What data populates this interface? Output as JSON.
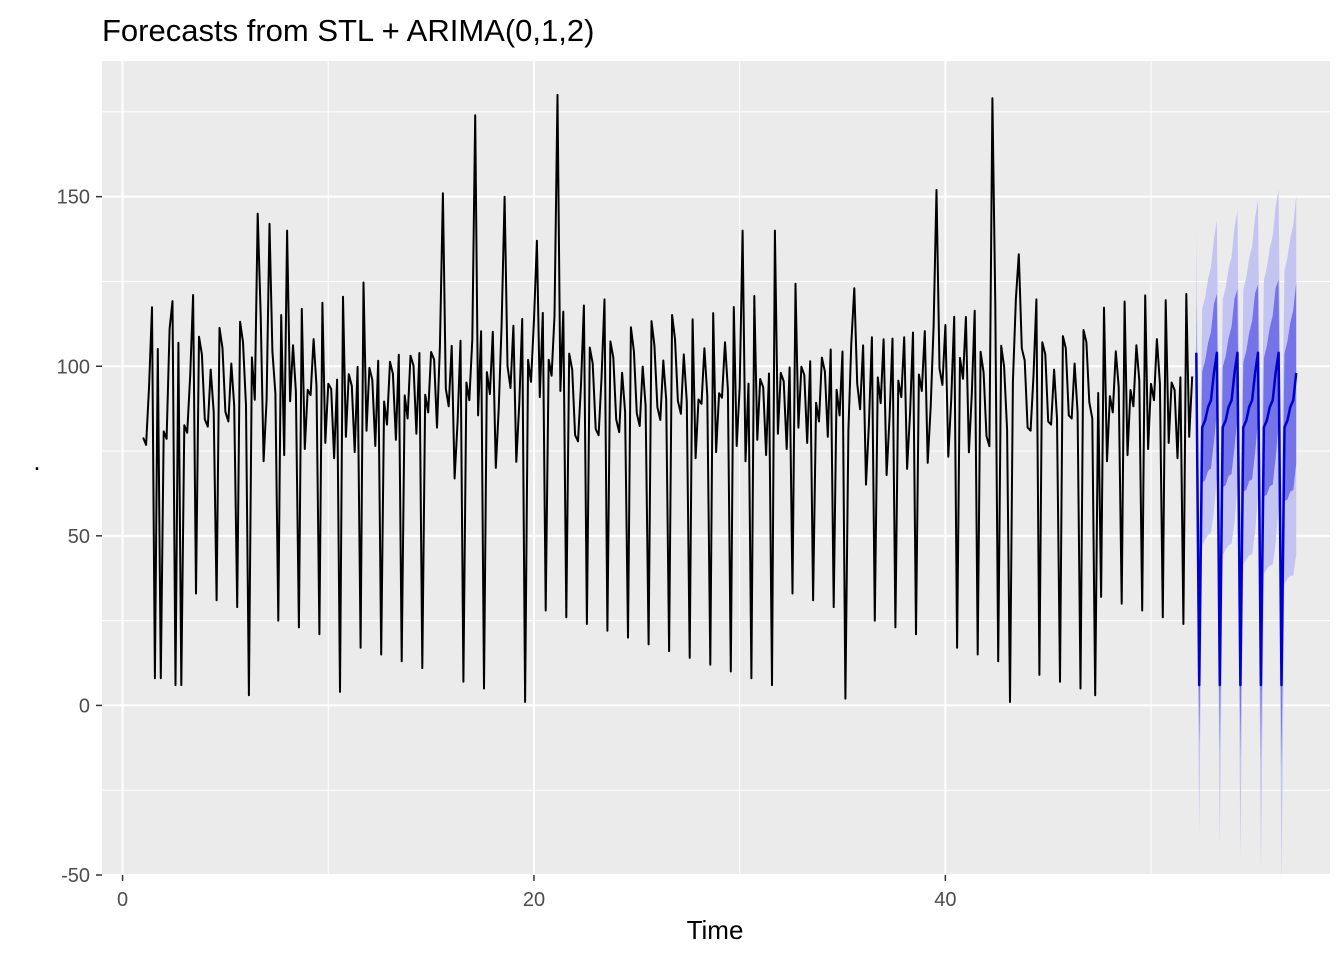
{
  "chart_data": {
    "type": "line",
    "title": "Forecasts from STL +  ARIMA(0,1,2)",
    "xlabel": "Time",
    "ylabel": ".",
    "xlim": [
      -1.0,
      58.7
    ],
    "ylim": [
      -50,
      190
    ],
    "x_ticks": [
      0,
      20,
      40
    ],
    "y_ticks": [
      -50,
      0,
      50,
      100,
      150
    ],
    "x_tick_labels": [
      "0",
      "20",
      "40"
    ],
    "y_tick_labels": [
      "-50",
      "0",
      "50",
      "100",
      "150"
    ],
    "grid": true,
    "background": "#ebebeb",
    "colors": {
      "history": "#000000",
      "forecast": "#0000cc",
      "band80": "#6666e6",
      "band95": "#c4c4f2"
    },
    "history": {
      "start": 1.0,
      "frequency": 7,
      "pattern": [
        97,
        84,
        90,
        103,
        8,
        106,
        90
      ],
      "amp": [
        1.0,
        1.05,
        0.95,
        1.1,
        1.0,
        1.08,
        0.97,
        1.12,
        0.93,
        1.02,
        1.15,
        0.98,
        1.06,
        0.9,
        1.2,
        1.0
      ],
      "peaks": [
        [
          2.3,
          111
        ],
        [
          6.6,
          145
        ],
        [
          7.1,
          142
        ],
        [
          8.0,
          140
        ],
        [
          15.5,
          151
        ],
        [
          17.2,
          174
        ],
        [
          18.6,
          150
        ],
        [
          20.2,
          137
        ],
        [
          21.1,
          180
        ],
        [
          30.1,
          140
        ],
        [
          31.7,
          140
        ],
        [
          35.6,
          123
        ],
        [
          39.6,
          152
        ],
        [
          42.3,
          179
        ],
        [
          43.6,
          133
        ]
      ],
      "dips": [
        [
          1.8,
          8
        ],
        [
          2.8,
          6
        ],
        [
          6.1,
          3
        ],
        [
          10.6,
          4
        ],
        [
          19.6,
          1
        ],
        [
          35.1,
          2
        ],
        [
          43.1,
          1
        ],
        [
          47.3,
          3
        ]
      ]
    },
    "forecast": {
      "start": 52.2,
      "end": 57.0,
      "frequency": 7,
      "pattern": [
        104,
        6,
        82,
        84,
        88,
        90,
        98
      ],
      "lower80": [
        88,
        -12,
        66,
        67,
        70,
        71,
        79
      ],
      "upper80": [
        120,
        24,
        98,
        101,
        106,
        109,
        117
      ],
      "lower95": [
        70,
        -37,
        48,
        50,
        52,
        53,
        60
      ],
      "upper95": [
        140,
        48,
        116,
        119,
        124,
        127,
        135
      ]
    }
  }
}
